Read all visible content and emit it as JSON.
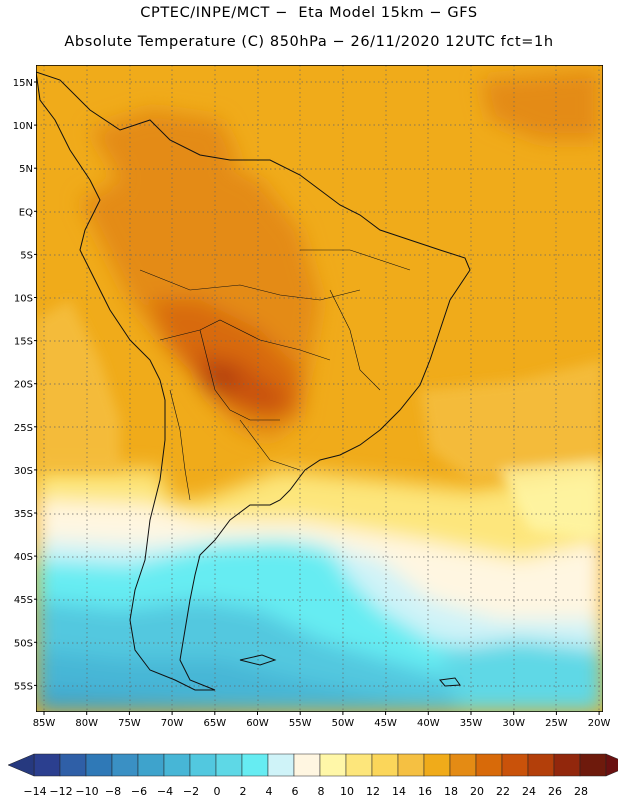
{
  "header": {
    "line1": "CPTEC/INPE/MCT −  Eta Model 15km − GFS",
    "line2": "Absolute Temperature (C) 850hPa − 26/11/2020 12UTC fct=1h"
  },
  "lat_labels": [
    "15N",
    "10N",
    "5N",
    "EQ",
    "5S",
    "10S",
    "15S",
    "20S",
    "25S",
    "30S",
    "35S",
    "40S",
    "45S",
    "50S",
    "55S"
  ],
  "lon_labels": [
    "85W",
    "80W",
    "75W",
    "70W",
    "65W",
    "60W",
    "55W",
    "50W",
    "45W",
    "40W",
    "35W",
    "30W",
    "25W",
    "20W"
  ],
  "colorbar": {
    "labels": [
      "-14",
      "-12",
      "-10",
      "-8",
      "-6",
      "-4",
      "-2",
      "0",
      "2",
      "4",
      "6",
      "8",
      "10",
      "12",
      "14",
      "16",
      "18",
      "20",
      "22",
      "24",
      "26",
      "28"
    ],
    "colors": [
      "#2b3f8f",
      "#2f5fa7",
      "#2f79b7",
      "#3a90c4",
      "#3ea3cc",
      "#47b6d6",
      "#52c8df",
      "#5ed8e6",
      "#66ecf2",
      "#cff3f8",
      "#fff6e1",
      "#fff7a8",
      "#fde67b",
      "#fbd65a",
      "#f5c042",
      "#f0ab1a",
      "#e48b14",
      "#d86a09",
      "#c9520a",
      "#b33f0a",
      "#92270c",
      "#6e1a0c"
    ],
    "under_color": "#26397f",
    "over_color": "#6a1010"
  }
}
